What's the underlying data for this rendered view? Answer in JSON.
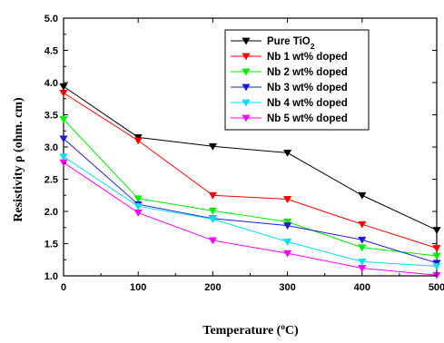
{
  "chart_data": {
    "type": "line",
    "xlabel": "Temperature (°C)",
    "ylabel": "Resistivity ρ (ohm. cm)",
    "xlim": [
      0,
      500
    ],
    "ylim": [
      1.0,
      5.0
    ],
    "xticks": [
      0,
      100,
      200,
      300,
      400,
      500
    ],
    "yticks": [
      1.0,
      1.5,
      2.0,
      2.5,
      3.0,
      3.5,
      4.0,
      4.5,
      5.0
    ],
    "x": [
      0,
      100,
      200,
      300,
      400,
      500
    ],
    "grid": false,
    "legend_position": "top-right",
    "series": [
      {
        "name": "Pure TiO2",
        "color": "#000000",
        "marker": "triangle-down",
        "values": [
          3.94,
          3.15,
          3.01,
          2.91,
          2.25,
          1.71
        ]
      },
      {
        "name": "Nb 1 wt% doped",
        "color": "#ff0000",
        "marker": "triangle-down",
        "values": [
          3.84,
          3.1,
          2.25,
          2.19,
          1.8,
          1.43
        ]
      },
      {
        "name": "Nb 2 wt% doped",
        "color": "#00ee00",
        "marker": "triangle-down",
        "values": [
          3.43,
          2.2,
          2.01,
          1.84,
          1.44,
          1.31
        ]
      },
      {
        "name": "Nb 3 wt% doped",
        "color": "#1a1add",
        "marker": "triangle-down",
        "values": [
          3.13,
          2.11,
          1.89,
          1.78,
          1.56,
          1.2
        ]
      },
      {
        "name": "Nb 4 wt% doped",
        "color": "#00e0f0",
        "marker": "triangle-down",
        "values": [
          2.85,
          2.08,
          1.88,
          1.53,
          1.22,
          1.15
        ]
      },
      {
        "name": "Nb 5 wt% doped",
        "color": "#ff00ff",
        "marker": "triangle-down",
        "values": [
          2.76,
          1.98,
          1.55,
          1.35,
          1.12,
          1.01
        ]
      }
    ]
  }
}
